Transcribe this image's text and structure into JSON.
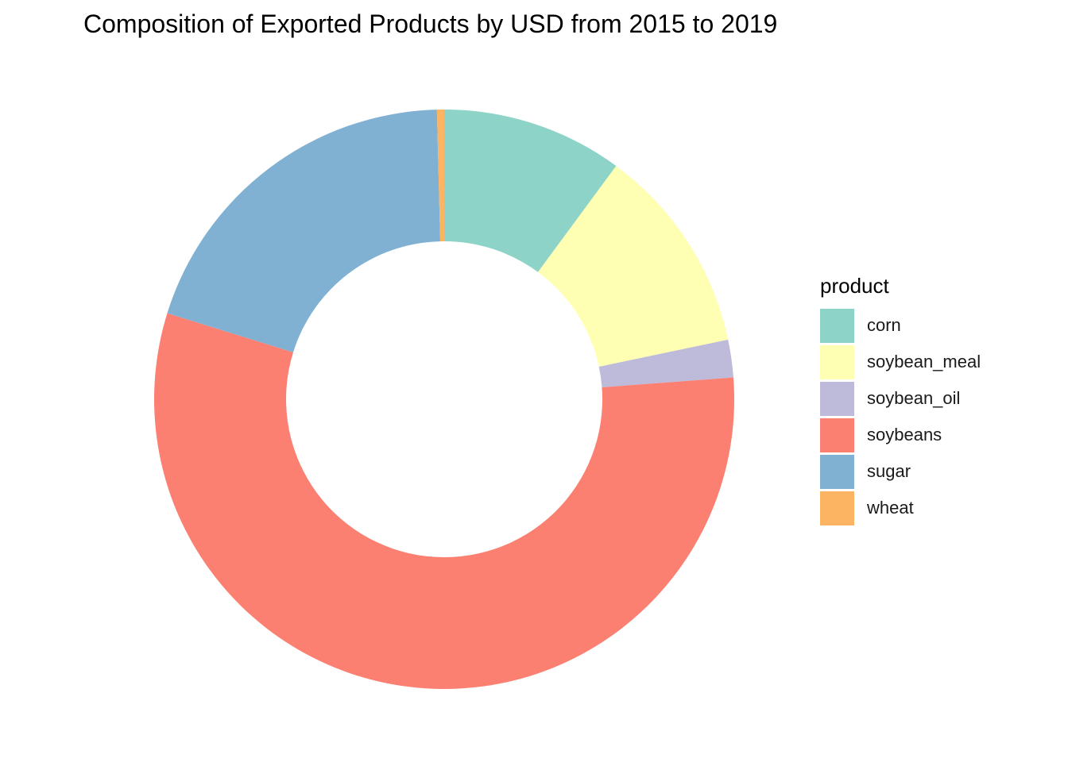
{
  "chart_data": {
    "type": "pie",
    "title": "Composition of Exported Products by USD from 2015 to 2019",
    "legend_title": "product",
    "legend_position": "right",
    "donut": true,
    "categories": [
      "corn",
      "soybean_meal",
      "soybean_oil",
      "soybeans",
      "sugar",
      "wheat"
    ],
    "values": [
      10.1,
      11.6,
      2.1,
      56.0,
      19.8,
      0.4
    ],
    "unit": "percent of total USD",
    "colors": [
      "#8DD3C7",
      "#FFFFB3",
      "#BEBADA",
      "#FB8072",
      "#80B1D3",
      "#FDB462"
    ]
  }
}
